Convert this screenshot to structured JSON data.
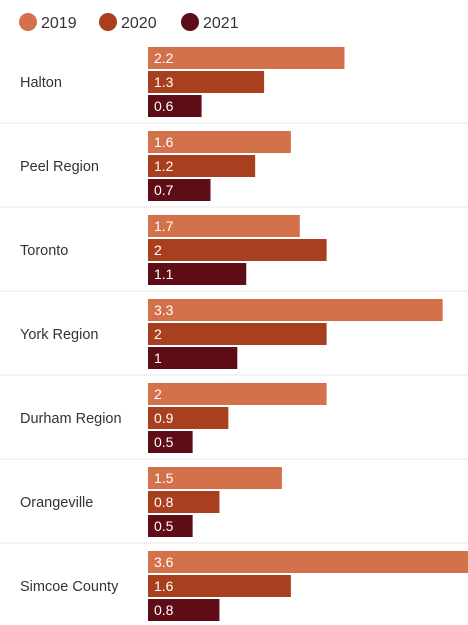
{
  "chart_data": {
    "type": "bar",
    "orientation": "horizontal",
    "title": "",
    "xlabel": "",
    "ylabel": "",
    "xlim": [
      0,
      3.6
    ],
    "grid": false,
    "legend_position": "top-left",
    "categories": [
      "Halton",
      "Peel Region",
      "Toronto",
      "York Region",
      "Durham Region",
      "Orangeville",
      "Simcoe County"
    ],
    "series": [
      {
        "name": "2019",
        "color": "#d2714a",
        "values": [
          2.2,
          1.6,
          1.7,
          3.3,
          2,
          1.5,
          3.6
        ]
      },
      {
        "name": "2020",
        "color": "#a8401f",
        "values": [
          1.3,
          1.2,
          2,
          2,
          0.9,
          0.8,
          1.6
        ]
      },
      {
        "name": "2021",
        "color": "#5e0d16",
        "values": [
          0.6,
          0.7,
          1.1,
          1,
          0.5,
          0.5,
          0.8
        ]
      }
    ]
  }
}
